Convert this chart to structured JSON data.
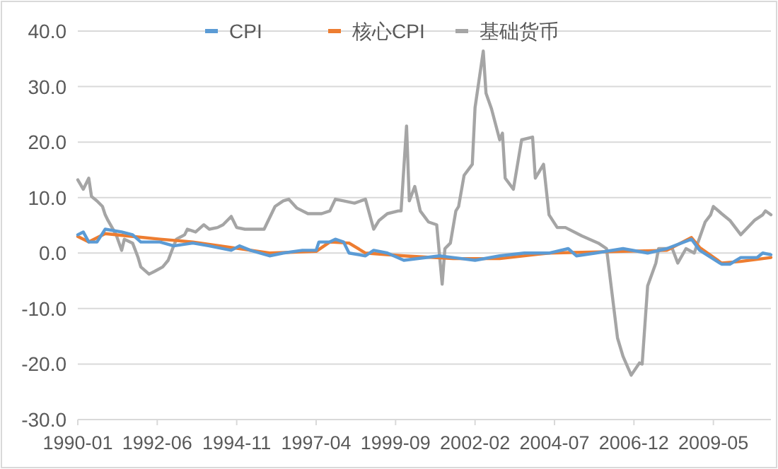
{
  "chart_data": {
    "type": "line",
    "legend": "top",
    "grid": "y",
    "line_style": "solid",
    "marker": "none",
    "xlim": [
      "1990-01",
      "2011-02"
    ],
    "xticks": [
      "1990-01",
      "1992-06",
      "1994-11",
      "1997-04",
      "1999-09",
      "2002-02",
      "2004-07",
      "2006-12",
      "2009-05"
    ],
    "ylim": [
      -30,
      40
    ],
    "yticks": [
      {
        "value": -30,
        "label": "-30.0"
      },
      {
        "value": -20,
        "label": "-20.0"
      },
      {
        "value": -10,
        "label": "-10.0"
      },
      {
        "value": 0,
        "label": "0.0"
      },
      {
        "value": 10,
        "label": "10.0"
      },
      {
        "value": 20,
        "label": "20.0"
      },
      {
        "value": 30,
        "label": "30.0"
      },
      {
        "value": 40,
        "label": "40.0"
      }
    ],
    "series": [
      {
        "name": "CPI",
        "color": "#5b9bd5",
        "x": [
          "1990-01",
          "1990-03",
          "1990-05",
          "1990-08",
          "1990-11",
          "1991-05",
          "1991-09",
          "1991-12",
          "1992-07",
          "1992-12",
          "1993-07",
          "1994-01",
          "1994-09",
          "1994-12",
          "1995-04",
          "1995-11",
          "1996-04",
          "1996-11",
          "1997-04",
          "1997-05",
          "1997-09",
          "1997-11",
          "1998-02",
          "1998-04",
          "1998-10",
          "1999-01",
          "1999-06",
          "1999-12",
          "2001-01",
          "2001-06",
          "2002-02",
          "2002-11",
          "2003-08",
          "2004-05",
          "2004-12",
          "2005-03",
          "2005-10",
          "2006-08",
          "2007-05",
          "2007-12",
          "2008-09",
          "2008-12",
          "2009-08",
          "2009-11",
          "2010-03",
          "2010-09",
          "2010-11",
          "2011-02"
        ],
        "values": [
          3.3,
          3.8,
          2.0,
          2.0,
          4.3,
          3.8,
          3.3,
          2.0,
          2.0,
          1.3,
          1.8,
          1.3,
          0.5,
          1.3,
          0.5,
          -0.5,
          0,
          0.5,
          0.5,
          2.0,
          2.0,
          2.5,
          2.0,
          0,
          -0.5,
          0.5,
          0,
          -1.3,
          -0.5,
          -0.8,
          -1.3,
          -0.5,
          0,
          0,
          0.8,
          -0.5,
          0,
          0.8,
          0,
          0.8,
          2.5,
          0.5,
          -2.0,
          -2.0,
          -0.8,
          -0.8,
          0,
          -0.3
        ]
      },
      {
        "name": "核心CPI",
        "color": "#ed7d31",
        "x": [
          "1990-01",
          "1990-05",
          "1990-11",
          "1991-09",
          "1992-07",
          "1993-07",
          "1994-09",
          "1995-11",
          "1997-04",
          "1997-09",
          "1998-04",
          "1998-10",
          "1999-12",
          "2001-06",
          "2002-11",
          "2004-05",
          "2006-08",
          "2007-12",
          "2008-09",
          "2008-12",
          "2009-08",
          "2010-03",
          "2011-02"
        ],
        "values": [
          3.0,
          2.0,
          3.5,
          3.0,
          2.5,
          2.0,
          1.0,
          0,
          0.3,
          2.0,
          1.8,
          0,
          -0.5,
          -1.0,
          -1.0,
          0,
          0.3,
          0.5,
          2.8,
          1.0,
          -1.8,
          -1.5,
          -0.8
        ]
      },
      {
        "name": "基础货币",
        "color": "#a5a5a5",
        "x": [
          "1990-01",
          "1990-03",
          "1990-05",
          "1990-06",
          "1990-08",
          "1990-10",
          "1990-11",
          "1990-12",
          "1991-03",
          "1991-05",
          "1991-06",
          "1991-09",
          "1991-11",
          "1991-12",
          "1992-03",
          "1992-05",
          "1992-08",
          "1992-10",
          "1992-12",
          "1993-01",
          "1993-04",
          "1993-05",
          "1993-08",
          "1993-11",
          "1994-01",
          "1994-04",
          "1994-06",
          "1994-09",
          "1994-11",
          "1995-02",
          "1995-07",
          "1995-09",
          "1996-01",
          "1996-04",
          "1996-06",
          "1996-09",
          "1997-01",
          "1997-06",
          "1997-09",
          "1997-11",
          "1998-02",
          "1998-06",
          "1998-10",
          "1999-01",
          "1999-03",
          "1999-06",
          "1999-10",
          "1999-11",
          "2000-01",
          "2000-02",
          "2000-04",
          "2000-06",
          "2000-09",
          "2000-12",
          "2001-02",
          "2001-03",
          "2001-05",
          "2001-07",
          "2001-08",
          "2001-10",
          "2002-01",
          "2002-02",
          "2002-05",
          "2002-06",
          "2002-08",
          "2002-11",
          "2002-12",
          "2003-01",
          "2003-04",
          "2003-07",
          "2003-11",
          "2003-12",
          "2004-03",
          "2004-05",
          "2004-08",
          "2004-11",
          "2005-05",
          "2005-11",
          "2006-02",
          "2006-06",
          "2006-08",
          "2006-11",
          "2007-02",
          "2007-03",
          "2007-05",
          "2007-08",
          "2007-09",
          "2008-02",
          "2008-04",
          "2008-07",
          "2008-10",
          "2009-02",
          "2009-04",
          "2009-05",
          "2009-08",
          "2009-11",
          "2010-03",
          "2010-08",
          "2010-11",
          "2010-12",
          "2011-02"
        ],
        "values": [
          13.2,
          11.5,
          13.5,
          10.2,
          9.4,
          8.4,
          6.9,
          5.9,
          3.3,
          0.5,
          2.5,
          1.8,
          -0.8,
          -2.5,
          -3.8,
          -3.3,
          -2.5,
          -1.3,
          1.3,
          2.5,
          3.3,
          4.3,
          3.8,
          5.1,
          4.3,
          4.6,
          5.1,
          6.6,
          4.6,
          4.3,
          4.3,
          4.3,
          8.4,
          9.4,
          9.7,
          8.1,
          7.1,
          7.1,
          7.6,
          9.7,
          9.4,
          9.0,
          9.7,
          4.3,
          5.9,
          7.1,
          7.6,
          7.6,
          22.9,
          9.4,
          12,
          7.6,
          5.6,
          5.1,
          -5.6,
          0.8,
          1.8,
          7.6,
          8.4,
          14,
          16,
          26.2,
          36.4,
          28.8,
          26,
          20.4,
          21.6,
          13.5,
          11.5,
          20.4,
          20.9,
          13.5,
          16,
          6.9,
          4.6,
          4.6,
          3.1,
          1.8,
          0.8,
          -15.3,
          -18.6,
          -22,
          -19.8,
          -20,
          -5.9,
          -1.8,
          0.8,
          0.8,
          -1.8,
          0.8,
          0,
          5.6,
          6.9,
          8.4,
          7.1,
          5.9,
          3.3,
          5.9,
          6.9,
          7.6,
          6.9
        ]
      }
    ]
  }
}
